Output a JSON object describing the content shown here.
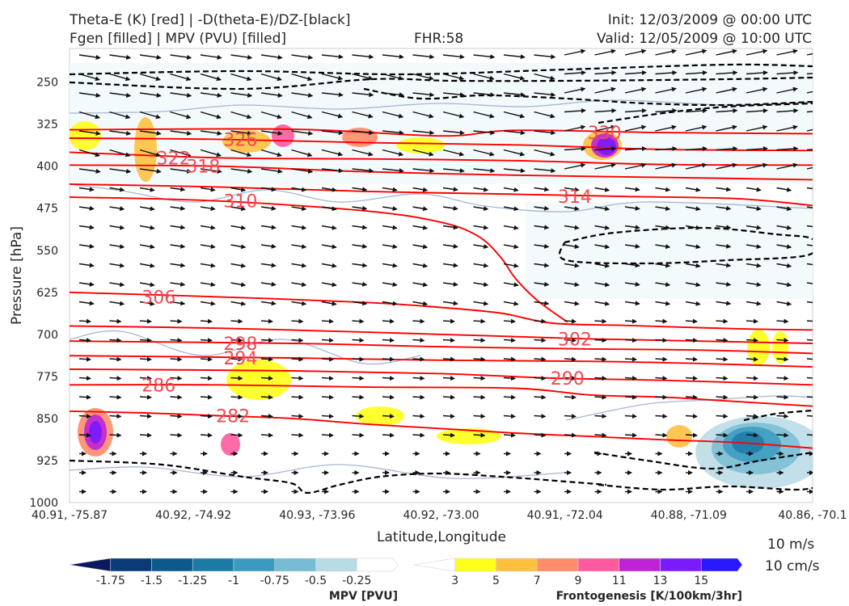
{
  "header": {
    "line1_left": "Theta-E (K) [red] | -D(theta-E)/DZ-[black]",
    "line2_left": "Fgen [filled] | MPV (PVU) [filled]",
    "fhr": "FHR:58",
    "init": "Init: 12/03/2009 @ 00:00 UTC",
    "valid": "Valid: 12/05/2009 @ 10:00 UTC"
  },
  "colors": {
    "theta_e": "#ff0000",
    "stability": "#000000",
    "mpv_scale": [
      "#0b1a5e",
      "#0b3a78",
      "#0b5a8e",
      "#1c7aa6",
      "#3b9abf",
      "#78bcd3",
      "#b9dbe6",
      "#ffffff"
    ],
    "fgen_scale": [
      "#ffffff",
      "#ffff1a",
      "#ffc040",
      "#ff8c6a",
      "#ff5aa0",
      "#c022d6",
      "#7a1aff",
      "#2a18ff"
    ]
  },
  "chart_data": {
    "type": "cross-section",
    "xlabel": "Latitude,Longitude",
    "ylabel": "Pressure [hPa]",
    "x_ticks": [
      "40.91, -75.87",
      "40.92, -74.92",
      "40.93, -73.96",
      "40.92, -73.00",
      "40.91, -72.04",
      "40.88, -71.09",
      "40.86, -70.1"
    ],
    "y_ticks": [
      250,
      325,
      400,
      475,
      550,
      625,
      700,
      775,
      850,
      925,
      1000
    ],
    "ylim": [
      1000,
      190
    ],
    "theta_e_contours": [
      {
        "label": "282",
        "values": [
          [
            0,
            837
          ],
          [
            10,
            840
          ],
          [
            20,
            845
          ],
          [
            30,
            850
          ],
          [
            40,
            860
          ],
          [
            50,
            868
          ],
          [
            60,
            876
          ],
          [
            70,
            882
          ],
          [
            80,
            888
          ],
          [
            90,
            893
          ],
          [
            100,
            903
          ]
        ]
      },
      {
        "label": "286",
        "values": [
          [
            0,
            790
          ],
          [
            20,
            790
          ],
          [
            40,
            794
          ],
          [
            60,
            796
          ],
          [
            70,
            808
          ],
          [
            80,
            812
          ],
          [
            90,
            820
          ],
          [
            100,
            828
          ]
        ]
      },
      {
        "label": "290",
        "values": [
          [
            0,
            762
          ],
          [
            30,
            765
          ],
          [
            50,
            770
          ],
          [
            65,
            778
          ],
          [
            80,
            782
          ],
          [
            100,
            790
          ]
        ]
      },
      {
        "label": "294",
        "values": [
          [
            0,
            738
          ],
          [
            30,
            742
          ],
          [
            50,
            746
          ],
          [
            70,
            748
          ],
          [
            85,
            752
          ],
          [
            100,
            758
          ]
        ]
      },
      {
        "label": "298",
        "values": [
          [
            0,
            712
          ],
          [
            30,
            716
          ],
          [
            50,
            722
          ],
          [
            70,
            726
          ],
          [
            85,
            728
          ],
          [
            100,
            734
          ]
        ]
      },
      {
        "label": "302",
        "values": [
          [
            0,
            685
          ],
          [
            20,
            689
          ],
          [
            40,
            696
          ],
          [
            55,
            702
          ],
          [
            70,
            708
          ],
          [
            85,
            712
          ],
          [
            100,
            716
          ]
        ]
      },
      {
        "label": "306",
        "values": [
          [
            0,
            625
          ],
          [
            20,
            633
          ],
          [
            40,
            643
          ],
          [
            50,
            652
          ],
          [
            58,
            662
          ],
          [
            65,
            680
          ],
          [
            75,
            684
          ],
          [
            90,
            690
          ],
          [
            100,
            692
          ]
        ]
      },
      {
        "label": "310",
        "values": [
          [
            0,
            455
          ],
          [
            20,
            462
          ],
          [
            40,
            480
          ],
          [
            50,
            500
          ],
          [
            55,
            525
          ],
          [
            58,
            562
          ],
          [
            60,
            600
          ],
          [
            63,
            640
          ],
          [
            67,
            678
          ]
        ]
      },
      {
        "label": "314",
        "values": [
          [
            0,
            432
          ],
          [
            20,
            437
          ],
          [
            40,
            445
          ],
          [
            60,
            450
          ],
          [
            75,
            454
          ],
          [
            90,
            458
          ],
          [
            100,
            470
          ]
        ]
      },
      {
        "label": "318",
        "values": [
          [
            0,
            398
          ],
          [
            20,
            400
          ],
          [
            40,
            410
          ],
          [
            60,
            416
          ],
          [
            80,
            420
          ],
          [
            100,
            424
          ]
        ]
      },
      {
        "label": "322",
        "values": [
          [
            0,
            375
          ],
          [
            20,
            385
          ],
          [
            40,
            387
          ],
          [
            60,
            390
          ],
          [
            80,
            397
          ],
          [
            100,
            398
          ]
        ]
      },
      {
        "label": "326",
        "values": [
          [
            0,
            350
          ],
          [
            20,
            352
          ],
          [
            40,
            358
          ],
          [
            60,
            362
          ],
          [
            80,
            370
          ],
          [
            100,
            372
          ]
        ]
      },
      {
        "label": "330",
        "values": [
          [
            0,
            335
          ],
          [
            30,
            334
          ],
          [
            50,
            346
          ],
          [
            60,
            336
          ],
          [
            80,
            340
          ],
          [
            100,
            342
          ]
        ]
      }
    ],
    "fgen_levels": [
      3,
      5,
      7,
      9,
      11,
      13,
      15
    ],
    "mpv_levels": [
      -1.75,
      -1.5,
      -1.25,
      -1.0,
      -0.75,
      -0.5,
      -0.25
    ],
    "colorbars": {
      "mpv_label": "MPV [PVU]",
      "fgen_label": "Frontogenesis [K/100km/3hr]"
    },
    "vector_reference": {
      "horizontal": "10 m/s",
      "vertical": "10 cm/s"
    }
  }
}
